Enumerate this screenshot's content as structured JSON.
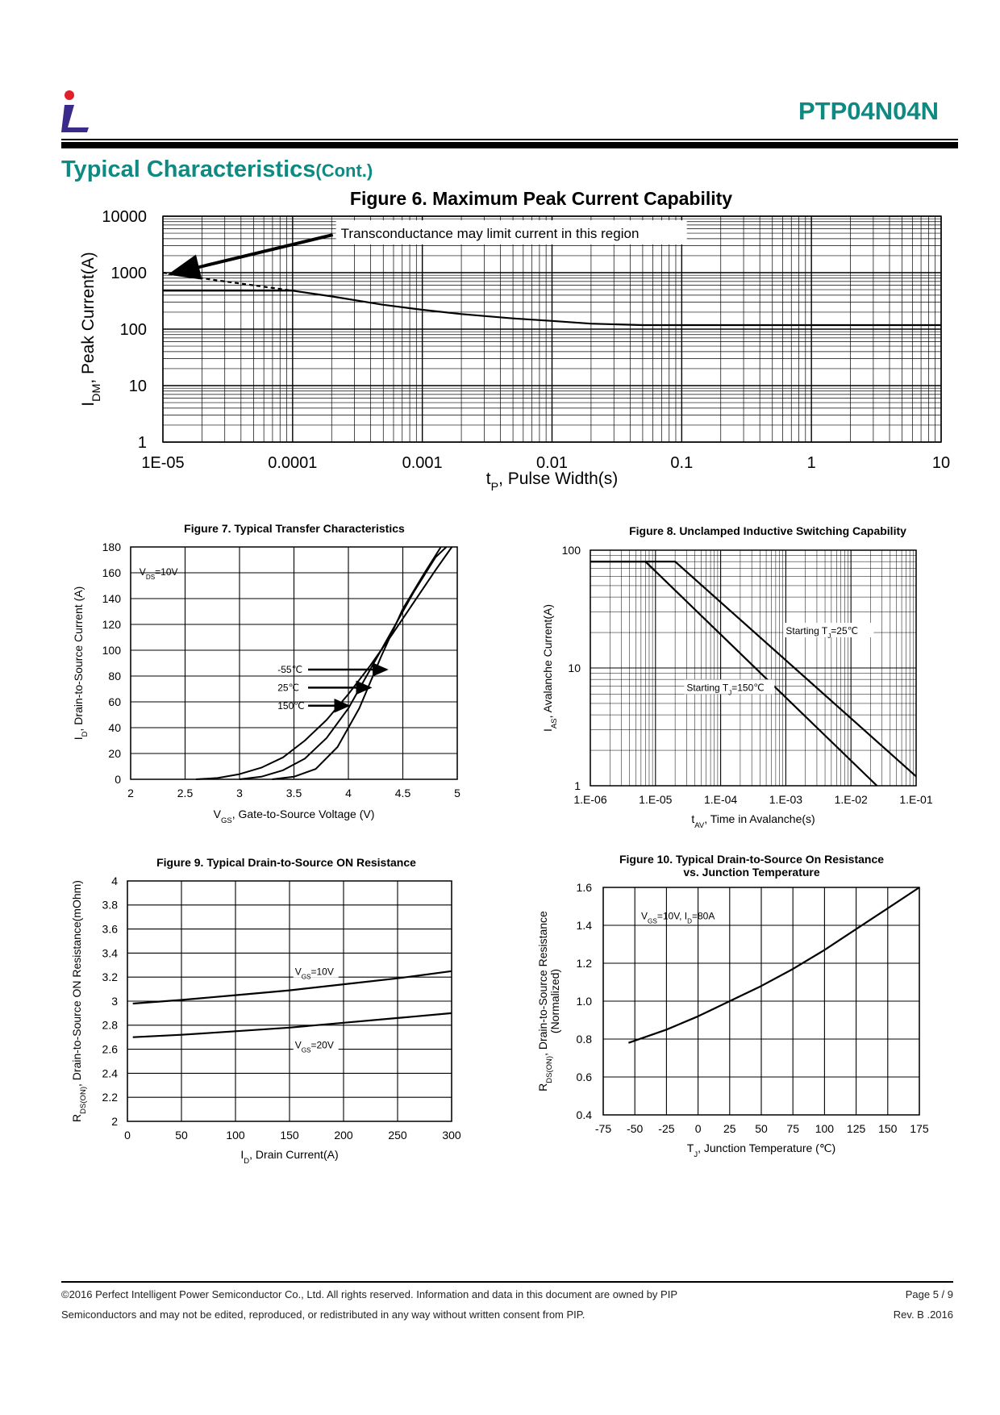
{
  "header": {
    "part_number": "PTP04N04N",
    "section_title": "Typical Characteristics",
    "section_title_suffix": "(Cont.)"
  },
  "footer": {
    "line1": "©2016 Perfect Intelligent Power Semiconductor Co., Ltd. All rights reserved. Information and data in this document are owned by PIP",
    "line2": "Semiconductors and may not be edited, reproduced, or redistributed in any way without written consent from PIP.",
    "page": "Page 5 / 9",
    "revision": "Rev. B .2016"
  },
  "colors": {
    "accent": "#0f8a82",
    "logo_red": "#e0202a",
    "logo_purple": "#3a2a8a"
  },
  "chart_data": [
    {
      "id": "fig6",
      "type": "line",
      "title": "Figure 6. Maximum Peak Current Capability",
      "xlabel": "t",
      "xlabel_sub": "P",
      "xlabel_rest": ", Pulse Width(s)",
      "ylabel": "I",
      "ylabel_sub": "DM",
      "ylabel_rest": ", Peak Current(A)",
      "x_scale": "log",
      "y_scale": "log",
      "xlim": [
        1e-05,
        10
      ],
      "ylim": [
        1,
        10000
      ],
      "x_ticks": [
        1e-05,
        0.0001,
        0.001,
        0.01,
        0.1,
        1,
        10
      ],
      "x_tick_labels": [
        "1E-05",
        "0.0001",
        "0.001",
        "0.01",
        "0.1",
        "1",
        "10"
      ],
      "y_ticks": [
        1,
        10,
        100,
        1000,
        10000
      ],
      "y_tick_labels": [
        "1",
        "10",
        "100",
        "1000",
        "10000"
      ],
      "grid": true,
      "annotation": "Transconductance  may limit current in this region",
      "series": [
        {
          "style": "solid",
          "x": [
            1e-05,
            0.0001,
            0.0002,
            0.0005,
            0.001,
            0.002,
            0.005,
            0.01,
            0.02,
            0.05,
            0.1,
            1,
            10
          ],
          "y": [
            480,
            480,
            380,
            270,
            220,
            185,
            155,
            140,
            125,
            118,
            118,
            118,
            118
          ]
        },
        {
          "style": "dashed",
          "x": [
            1e-05,
            3e-05,
            0.0001
          ],
          "y": [
            1000,
            700,
            480
          ]
        }
      ]
    },
    {
      "id": "fig7",
      "type": "line",
      "title": "Figure 7. Typical  Transfer Characteristics",
      "xlabel": "V",
      "xlabel_sub": "GS",
      "xlabel_rest": ",  Gate-to-Source  Voltage  (V)",
      "ylabel": "I",
      "ylabel_sub": "D",
      "ylabel_rest": ",  Drain-to-Source  Current  (A)",
      "xlim": [
        2,
        5
      ],
      "ylim": [
        0,
        180
      ],
      "x_ticks": [
        2,
        2.5,
        3,
        3.5,
        4,
        4.5,
        5
      ],
      "x_tick_labels": [
        "2",
        "2.5",
        "3",
        "3.5",
        "4",
        "4.5",
        "5"
      ],
      "y_ticks": [
        0,
        20,
        40,
        60,
        80,
        100,
        120,
        140,
        160,
        180
      ],
      "y_tick_labels": [
        "0",
        "20",
        "40",
        "60",
        "80",
        "100",
        "120",
        "140",
        "160",
        "180"
      ],
      "grid": true,
      "condition": "V",
      "condition_sub": "DS",
      "condition_rest": "=10V",
      "series": [
        {
          "name": "-55℃",
          "x": [
            2.6,
            2.8,
            3.0,
            3.2,
            3.4,
            3.6,
            3.8,
            4.0,
            4.2,
            4.4,
            4.6,
            4.8,
            4.95
          ],
          "y": [
            0,
            1,
            4,
            9,
            17,
            30,
            46,
            66,
            88,
            112,
            137,
            162,
            180
          ]
        },
        {
          "name": "25℃",
          "x": [
            3.0,
            3.2,
            3.4,
            3.6,
            3.8,
            4.0,
            4.2,
            4.4,
            4.6,
            4.8,
            4.9
          ],
          "y": [
            0,
            2,
            7,
            16,
            32,
            55,
            85,
            115,
            145,
            172,
            180
          ]
        },
        {
          "name": "150℃",
          "x": [
            3.3,
            3.5,
            3.7,
            3.9,
            4.1,
            4.3,
            4.5,
            4.7,
            4.85
          ],
          "y": [
            0,
            2,
            8,
            25,
            55,
            95,
            132,
            160,
            180
          ]
        }
      ]
    },
    {
      "id": "fig8",
      "type": "line",
      "title": "Figure 8. Unclamped  Inductive  Switching  Capability",
      "xlabel": "t",
      "xlabel_sub": "AV",
      "xlabel_rest": ", Time in Avalanche(s)",
      "ylabel": "I",
      "ylabel_sub": "AS",
      "ylabel_rest": ", Avalanche  Current(A)",
      "x_scale": "log",
      "y_scale": "log",
      "xlim": [
        1e-06,
        0.1
      ],
      "ylim": [
        1,
        100
      ],
      "x_ticks": [
        1e-06,
        1e-05,
        0.0001,
        0.001,
        0.01,
        0.1
      ],
      "x_tick_labels": [
        "1.E-06",
        "1.E-05",
        "1.E-04",
        "1.E-03",
        "1.E-02",
        "1.E-01"
      ],
      "y_ticks": [
        1,
        10,
        100
      ],
      "y_tick_labels": [
        "1",
        "10",
        "100"
      ],
      "grid": true,
      "series": [
        {
          "name": "Starting T",
          "name_sub": "J",
          "name_rest": "=25℃",
          "x": [
            1e-06,
            2e-05,
            0.1
          ],
          "y": [
            80,
            80,
            1.2
          ]
        },
        {
          "name": "Starting T",
          "name_sub": "J",
          "name_rest": "=150℃",
          "x": [
            1e-06,
            7e-06,
            0.025
          ],
          "y": [
            80,
            80,
            1
          ]
        }
      ]
    },
    {
      "id": "fig9",
      "type": "line",
      "title": "Figure 9. Typical Drain-to-Source ON Resistance",
      "xlabel": "I",
      "xlabel_sub": "D",
      "xlabel_rest": ", Drain Current(A)",
      "ylabel": "R",
      "ylabel_sub": "DS(ON)",
      "ylabel_rest": ", Drain-to-Source ON Resistance(mOhm)",
      "xlim": [
        0,
        300
      ],
      "ylim": [
        2,
        4
      ],
      "x_ticks": [
        0,
        50,
        100,
        150,
        200,
        250,
        300
      ],
      "x_tick_labels": [
        "0",
        "50",
        "100",
        "150",
        "200",
        "250",
        "300"
      ],
      "y_ticks": [
        2,
        2.2,
        2.4,
        2.6,
        2.8,
        3,
        3.2,
        3.4,
        3.6,
        3.8,
        4
      ],
      "y_tick_labels": [
        "2",
        "2.2",
        "2.4",
        "2.6",
        "2.8",
        "3",
        "3.2",
        "3.4",
        "3.6",
        "3.8",
        "4"
      ],
      "grid": true,
      "series": [
        {
          "name": "V",
          "name_sub": "GS",
          "name_rest": "=10V",
          "x": [
            5,
            50,
            100,
            150,
            200,
            250,
            300
          ],
          "y": [
            2.98,
            3.01,
            3.05,
            3.09,
            3.14,
            3.19,
            3.25
          ]
        },
        {
          "name": "V",
          "name_sub": "GS",
          "name_rest": "=20V",
          "x": [
            5,
            50,
            100,
            150,
            200,
            250,
            300
          ],
          "y": [
            2.7,
            2.72,
            2.75,
            2.78,
            2.82,
            2.86,
            2.9
          ]
        }
      ]
    },
    {
      "id": "fig10",
      "type": "line",
      "title": "Figure 10. Typical Drain-to-Source On Resistance",
      "title_line2": "vs. Junction Temperature",
      "xlabel": "T",
      "xlabel_sub": "J",
      "xlabel_rest": ", Junction Temperature (℃)",
      "ylabel": "R",
      "ylabel_sub": "DS(ON)",
      "ylabel_rest": ", Drain-to-Source Resistance",
      "ylabel_line2": "(Normalized)",
      "xlim": [
        -75,
        175
      ],
      "ylim": [
        0.4,
        1.6
      ],
      "x_ticks": [
        -75,
        -50,
        -25,
        0,
        25,
        50,
        75,
        100,
        125,
        150,
        175
      ],
      "x_tick_labels": [
        "-75",
        "-50",
        "-25",
        "0",
        "25",
        "50",
        "75",
        "100",
        "125",
        "150",
        "175"
      ],
      "y_ticks": [
        0.4,
        0.6,
        0.8,
        1.0,
        1.2,
        1.4,
        1.6
      ],
      "y_tick_labels": [
        "0.4",
        "0.6",
        "0.8",
        "1.0",
        "1.2",
        "1.4",
        "1.6"
      ],
      "grid": true,
      "condition": "V",
      "condition_sub": "GS",
      "condition_rest": "=10V, I",
      "condition_sub2": "D",
      "condition_rest2": "=80A",
      "series": [
        {
          "x": [
            -55,
            -25,
            0,
            25,
            50,
            75,
            100,
            125,
            150,
            175
          ],
          "y": [
            0.78,
            0.85,
            0.92,
            1.0,
            1.08,
            1.17,
            1.27,
            1.38,
            1.49,
            1.6
          ]
        }
      ]
    }
  ]
}
